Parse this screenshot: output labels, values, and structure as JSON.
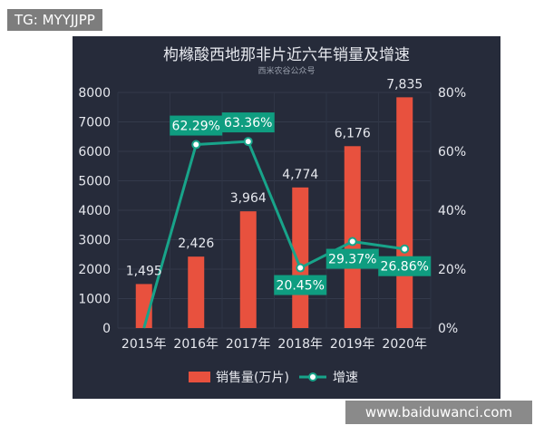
{
  "watermark_top": "TG: MYYJJPP",
  "watermark_bottom": "www.baiduwanci.com",
  "colors": {
    "panel_bg": "#262b3a",
    "bar": "#e8513e",
    "line": "#18a48a",
    "label_box": "#0f9d80",
    "text": "#e6e8ee"
  },
  "chart_data": {
    "type": "bar",
    "title": "枸橼酸西地那非片近六年销量及增速",
    "subtitle": "西米农谷公众号",
    "categories": [
      "2015年",
      "2016年",
      "2017年",
      "2018年",
      "2019年",
      "2020年"
    ],
    "series": [
      {
        "name": "销售量(万片)",
        "type": "bar",
        "axis": "left",
        "values": [
          1495,
          2426,
          3964,
          4774,
          6176,
          7835
        ],
        "labels": [
          "1,495",
          "2,426",
          "3,964",
          "4,774",
          "6,176",
          "7,835"
        ]
      },
      {
        "name": "增速",
        "type": "line",
        "axis": "right",
        "values": [
          null,
          62.29,
          63.36,
          20.45,
          29.37,
          26.86
        ],
        "labels": [
          "",
          "62.29%",
          "63.36%",
          "20.45%",
          "29.37%",
          "26.86%"
        ]
      }
    ],
    "y_left": {
      "min": 0,
      "max": 8000,
      "ticks": [
        "0",
        "1000",
        "2000",
        "3000",
        "4000",
        "5000",
        "6000",
        "7000",
        "8000"
      ]
    },
    "y_right": {
      "min": 0,
      "max": 80,
      "ticks": [
        "0%",
        "20%",
        "40%",
        "60%",
        "80%"
      ]
    },
    "grid": true,
    "legend_position": "bottom-center"
  }
}
